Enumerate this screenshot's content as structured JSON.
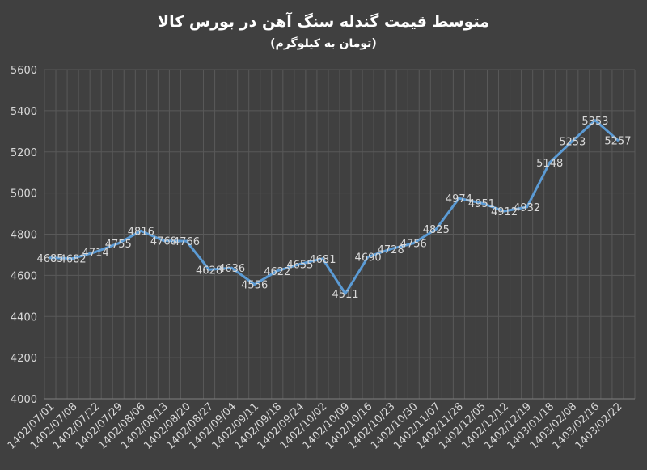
{
  "chart_data": {
    "type": "line",
    "title": "متوسط قیمت گندله سنگ آهن در بورس کالا",
    "subtitle": "(تومان به کیلوگرم)",
    "xlabel": "",
    "ylabel": "",
    "ylim": [
      4000,
      5600
    ],
    "yticks": [
      4000,
      4200,
      4400,
      4600,
      4800,
      5000,
      5200,
      5400,
      5600
    ],
    "grid": true,
    "legend": "none",
    "categories": [
      "1402/07/01",
      "",
      "1402/07/08",
      "",
      "1402/07/22",
      "",
      "1402/07/29",
      "",
      "1402/08/06",
      "",
      "1402/08/13",
      "",
      "1402/08/20",
      "",
      "1402/08/27",
      "",
      "1402/09/04",
      "",
      "1402/09/11",
      "",
      "1402/09/18",
      "",
      "1402/09/24",
      "",
      "1402/10/02",
      "",
      "1402/10/09",
      "",
      "1402/10/16",
      "",
      "1402/10/23",
      "",
      "1402/10/30",
      "",
      "1402/11/07",
      "",
      "1402/11/28",
      "",
      "1402/12/05",
      "",
      "1402/12/12",
      "",
      "1402/12/19",
      "",
      "1403/01/18",
      "",
      "1403/02/08",
      "",
      "1403/02/16",
      "",
      "1403/02/22",
      ""
    ],
    "series": [
      {
        "name": "",
        "color": "#5b9bd5",
        "values": [
          4685,
          null,
          4682,
          null,
          4714,
          null,
          4755,
          null,
          4816,
          null,
          4768,
          null,
          4766,
          null,
          4628,
          null,
          4636,
          null,
          4556,
          null,
          4622,
          null,
          4655,
          null,
          4681,
          null,
          4511,
          null,
          4690,
          null,
          4728,
          null,
          4756,
          null,
          4825,
          null,
          4974,
          null,
          4951,
          null,
          4912,
          null,
          4932,
          null,
          5148,
          null,
          5253,
          null,
          5353,
          null,
          5257,
          null
        ]
      }
    ],
    "colors": {
      "background": "#404040",
      "grid": "#595959",
      "text": "#d9d9d9",
      "line": "#5b9bd5"
    }
  }
}
